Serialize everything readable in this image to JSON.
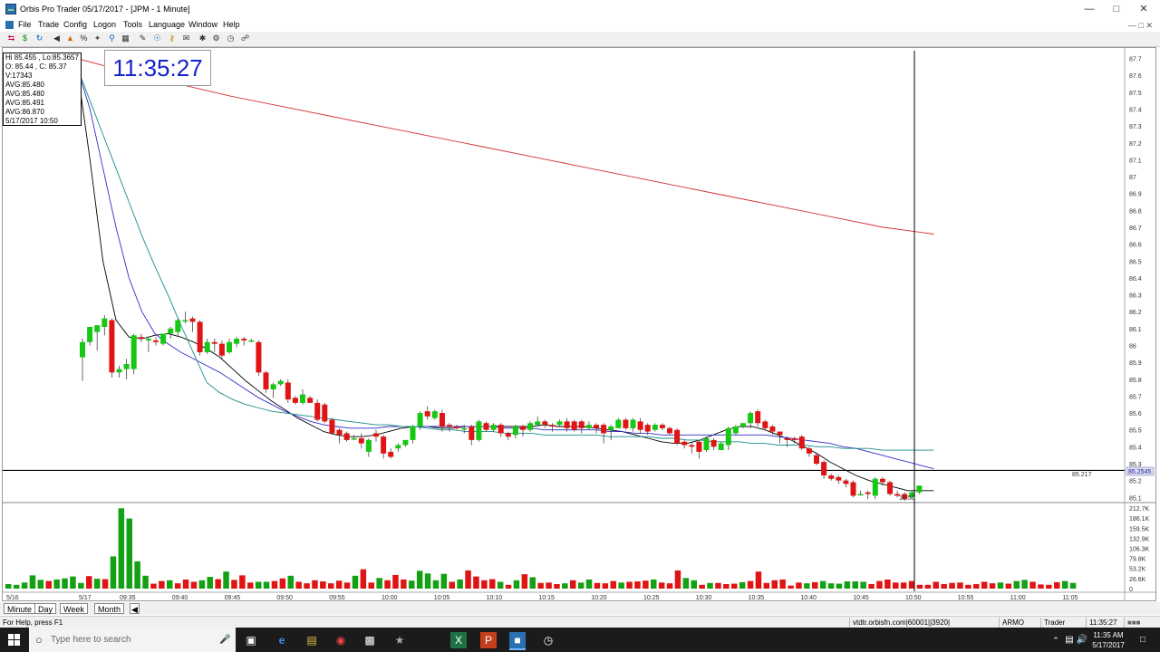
{
  "window": {
    "title": "Orbis Pro Trader 05/17/2017 - [JPM - 1 Minute]",
    "minimize_icon": "minimize-icon",
    "maximize_icon": "maximize-icon",
    "close_icon": "close-icon"
  },
  "menu": [
    "File",
    "Trade",
    "Config",
    "Logon",
    "Tools",
    "Language",
    "Window",
    "Help"
  ],
  "toolbar_icons": [
    "shuffle-icon",
    "dollar-icon",
    "refresh-icon",
    "back-icon",
    "chart-icon",
    "percent-icon",
    "tools-icon",
    "zoom-icon",
    "grid-icon",
    "draw-icon",
    "world-icon",
    "key-icon",
    "mail-icon",
    "settings-icon",
    "gear-icon",
    "clock-icon",
    "lock-icon"
  ],
  "info_box": {
    "line1": "Hi 85.455 , Lo:85.3657",
    "line2": "O: 85.44 , C: 85.37",
    "line3": "V:17343",
    "line4": "AVG:85.480",
    "line5": "AVG:85.480",
    "line6": "AVG:85.491",
    "line7": "AVG:86.870",
    "line8": "5/17/2017 10:50"
  },
  "clock": "11:35:27",
  "chart_data": {
    "type": "candlestick",
    "price_axis_ticks": [
      "87.7",
      "87.6",
      "87.5",
      "87.4",
      "87.3",
      "87.2",
      "87.1",
      "87",
      "86.9",
      "86.8",
      "86.7",
      "86.6",
      "86.5",
      "86.4",
      "86.3",
      "86.2",
      "86.1",
      "86",
      "85.9",
      "85.8",
      "85.7",
      "85.6",
      "85.5",
      "85.4",
      "85.3",
      "85.2",
      "85.1"
    ],
    "volume_axis_ticks": [
      "212.7K",
      "186.1K",
      "159.5K",
      "132.9K",
      "106.3K",
      "79.8K",
      "53.2K",
      "26.6K",
      "0"
    ],
    "time_labels": [
      "5/16",
      "5/17",
      "09:35",
      "09:40",
      "09:45",
      "09:50",
      "09:55",
      "10:00",
      "10:05",
      "10:10",
      "10:15",
      "10:20",
      "10:25",
      "10:30",
      "10:35",
      "10:40",
      "10:45",
      "10:50",
      "10:55",
      "11:00",
      "11:05"
    ],
    "cursor_time_label": "10:50",
    "last_price_label": "85.217",
    "price_marker": "85.2545",
    "ylim": [
      85.08,
      87.73
    ],
    "candles_ohlc": [
      [
        85.93,
        86.02,
        85.79,
        86.04
      ],
      [
        86.02,
        86.11,
        86.0,
        86.09
      ],
      [
        86.08,
        86.12,
        85.97,
        86.11
      ],
      [
        86.11,
        86.16,
        86.06,
        86.18
      ],
      [
        86.15,
        85.84,
        85.81,
        86.16
      ],
      [
        85.84,
        85.86,
        85.81,
        85.88
      ],
      [
        85.86,
        85.89,
        85.8,
        85.92
      ],
      [
        85.86,
        86.06,
        85.83,
        86.07
      ],
      [
        86.05,
        86.04,
        86.02,
        86.07
      ],
      [
        86.03,
        86.04,
        85.96,
        86.05
      ],
      [
        86.03,
        86.02,
        86.0,
        86.05
      ],
      [
        86.01,
        86.07,
        86.0,
        86.07
      ],
      [
        86.07,
        86.1,
        86.04,
        86.11
      ],
      [
        86.08,
        86.15,
        86.05,
        86.16
      ],
      [
        86.15,
        86.15,
        86.13,
        86.2
      ],
      [
        86.16,
        86.14,
        86.08,
        86.17
      ],
      [
        86.14,
        85.96,
        85.94,
        86.15
      ],
      [
        85.96,
        86.02,
        85.95,
        86.04
      ],
      [
        86.02,
        86.01,
        85.96,
        86.04
      ],
      [
        86.01,
        85.94,
        85.92,
        86.03
      ],
      [
        85.96,
        86.02,
        85.95,
        86.04
      ],
      [
        86.01,
        86.04,
        85.99,
        86.05
      ],
      [
        86.04,
        86.03,
        86.0,
        86.05
      ],
      [
        86.03,
        86.03,
        86.02,
        86.04
      ],
      [
        86.02,
        85.84,
        85.82,
        86.03
      ],
      [
        85.84,
        85.74,
        85.72,
        85.85
      ],
      [
        85.74,
        85.77,
        85.69,
        85.78
      ],
      [
        85.77,
        85.79,
        85.76,
        85.8
      ],
      [
        85.78,
        85.68,
        85.66,
        85.8
      ],
      [
        85.69,
        85.66,
        85.65,
        85.7
      ],
      [
        85.66,
        85.71,
        85.65,
        85.74
      ],
      [
        85.69,
        85.66,
        85.66,
        85.7
      ],
      [
        85.66,
        85.56,
        85.55,
        85.68
      ],
      [
        85.65,
        85.55,
        85.54,
        85.66
      ],
      [
        85.56,
        85.48,
        85.47,
        85.57
      ],
      [
        85.5,
        85.47,
        85.42,
        85.51
      ],
      [
        85.48,
        85.44,
        85.43,
        85.49
      ],
      [
        85.45,
        85.45,
        85.44,
        85.47
      ],
      [
        85.45,
        85.42,
        85.39,
        85.48
      ],
      [
        85.37,
        85.44,
        85.34,
        85.45
      ],
      [
        85.48,
        85.46,
        85.43,
        85.5
      ],
      [
        85.46,
        85.36,
        85.33,
        85.47
      ],
      [
        85.37,
        85.34,
        85.33,
        85.39
      ],
      [
        85.39,
        85.41,
        85.37,
        85.42
      ],
      [
        85.41,
        85.44,
        85.4,
        85.44
      ],
      [
        85.44,
        85.52,
        85.42,
        85.53
      ],
      [
        85.52,
        85.6,
        85.5,
        85.61
      ],
      [
        85.61,
        85.58,
        85.56,
        85.64
      ],
      [
        85.57,
        85.61,
        85.56,
        85.62
      ],
      [
        85.6,
        85.52,
        85.49,
        85.62
      ],
      [
        85.53,
        85.52,
        85.49,
        85.54
      ],
      [
        85.52,
        85.51,
        85.5,
        85.53
      ],
      [
        85.51,
        85.51,
        85.48,
        85.53
      ],
      [
        85.52,
        85.44,
        85.41,
        85.53
      ],
      [
        85.44,
        85.55,
        85.43,
        85.56
      ],
      [
        85.54,
        85.5,
        85.49,
        85.55
      ],
      [
        85.5,
        85.53,
        85.49,
        85.54
      ],
      [
        85.53,
        85.48,
        85.46,
        85.54
      ],
      [
        85.48,
        85.46,
        85.44,
        85.49
      ],
      [
        85.47,
        85.52,
        85.45,
        85.53
      ],
      [
        85.52,
        85.5,
        85.46,
        85.53
      ],
      [
        85.5,
        85.54,
        85.49,
        85.55
      ],
      [
        85.53,
        85.55,
        85.52,
        85.58
      ],
      [
        85.55,
        85.53,
        85.51,
        85.56
      ],
      [
        85.53,
        85.52,
        85.49,
        85.54
      ],
      [
        85.53,
        85.55,
        85.52,
        85.56
      ],
      [
        85.55,
        85.51,
        85.49,
        85.57
      ],
      [
        85.55,
        85.5,
        85.49,
        85.56
      ],
      [
        85.55,
        85.51,
        85.48,
        85.56
      ],
      [
        85.51,
        85.53,
        85.5,
        85.55
      ],
      [
        85.53,
        85.51,
        85.48,
        85.54
      ],
      [
        85.53,
        85.48,
        85.42,
        85.54
      ],
      [
        85.5,
        85.52,
        85.44,
        85.53
      ],
      [
        85.51,
        85.56,
        85.51,
        85.57
      ],
      [
        85.56,
        85.51,
        85.5,
        85.57
      ],
      [
        85.51,
        85.56,
        85.49,
        85.57
      ],
      [
        85.55,
        85.5,
        85.48,
        85.57
      ],
      [
        85.53,
        85.49,
        85.47,
        85.54
      ],
      [
        85.5,
        85.53,
        85.49,
        85.54
      ],
      [
        85.53,
        85.51,
        85.5,
        85.54
      ],
      [
        85.51,
        85.48,
        85.47,
        85.52
      ],
      [
        85.5,
        85.42,
        85.41,
        85.51
      ],
      [
        85.43,
        85.41,
        85.39,
        85.44
      ],
      [
        85.41,
        85.4,
        85.36,
        85.43
      ],
      [
        85.43,
        85.37,
        85.33,
        85.44
      ],
      [
        85.38,
        85.45,
        85.37,
        85.46
      ],
      [
        85.44,
        85.4,
        85.38,
        85.45
      ],
      [
        85.38,
        85.42,
        85.38,
        85.43
      ],
      [
        85.41,
        85.51,
        85.38,
        85.52
      ],
      [
        85.48,
        85.52,
        85.47,
        85.53
      ],
      [
        85.52,
        85.54,
        85.51,
        85.54
      ],
      [
        85.54,
        85.6,
        85.51,
        85.61
      ],
      [
        85.61,
        85.54,
        85.52,
        85.62
      ],
      [
        85.55,
        85.51,
        85.5,
        85.56
      ],
      [
        85.52,
        85.49,
        85.47,
        85.53
      ],
      [
        85.49,
        85.47,
        85.42,
        85.49
      ],
      [
        85.45,
        85.44,
        85.4,
        85.46
      ],
      [
        85.45,
        85.44,
        85.42,
        85.46
      ],
      [
        85.46,
        85.39,
        85.38,
        85.47
      ],
      [
        85.39,
        85.36,
        85.34,
        85.4
      ],
      [
        85.35,
        85.3,
        85.29,
        85.36
      ],
      [
        85.31,
        85.23,
        85.21,
        85.32
      ],
      [
        85.23,
        85.21,
        85.2,
        85.24
      ],
      [
        85.22,
        85.2,
        85.18,
        85.23
      ],
      [
        85.2,
        85.18,
        85.16,
        85.21
      ],
      [
        85.19,
        85.11,
        85.1,
        85.2
      ],
      [
        85.12,
        85.12,
        85.11,
        85.14
      ],
      [
        85.13,
        85.12,
        85.09,
        85.14
      ],
      [
        85.11,
        85.21,
        85.09,
        85.22
      ],
      [
        85.21,
        85.19,
        85.17,
        85.22
      ],
      [
        85.19,
        85.12,
        85.11,
        85.2
      ],
      [
        85.12,
        85.11,
        85.1,
        85.14
      ],
      [
        85.12,
        85.09,
        85.08,
        85.13
      ],
      [
        85.1,
        85.13,
        85.09,
        85.14
      ],
      [
        85.13,
        85.17,
        85.12,
        85.17
      ]
    ],
    "volume_k": [
      12,
      10,
      16,
      35,
      23,
      20,
      24,
      27,
      32,
      15,
      33,
      26,
      25,
      85,
      212,
      185,
      72,
      34,
      13,
      20,
      22,
      14,
      24,
      18,
      22,
      31,
      25,
      45,
      23,
      35,
      16,
      18,
      18,
      20,
      27,
      34,
      18,
      14,
      22,
      19,
      14,
      21,
      16,
      34,
      51,
      16,
      28,
      22,
      36,
      24,
      21,
      47,
      40,
      22,
      39,
      18,
      24,
      48,
      32,
      22,
      25,
      18,
      10,
      22,
      38,
      30,
      15,
      16,
      12,
      14,
      22,
      16,
      24,
      15,
      14,
      20,
      16,
      18,
      19,
      21,
      24,
      16,
      14,
      48,
      28,
      22,
      10,
      15,
      15,
      12,
      13,
      17,
      20,
      45,
      15,
      22,
      24,
      8,
      16,
      14,
      17,
      20,
      14,
      13,
      19,
      19,
      18,
      12,
      20,
      24,
      16,
      16,
      20,
      10,
      10,
      18,
      12,
      15,
      16,
      10,
      12,
      18,
      14,
      16,
      13,
      20,
      23,
      18,
      11,
      10,
      17,
      20,
      15
    ],
    "series": [
      {
        "name": "AVG 85.480",
        "color": "#000000",
        "values": [
          87.65,
          87.1,
          86.5,
          86.15,
          86.05,
          86.04,
          86.06,
          86.07,
          86.05,
          86.02,
          85.98,
          85.93,
          85.86,
          85.79,
          85.73,
          85.67,
          85.62,
          85.57,
          85.53,
          85.49,
          85.47,
          85.46,
          85.46,
          85.47,
          85.49,
          85.51,
          85.52,
          85.52,
          85.51,
          85.51,
          85.52,
          85.52,
          85.52,
          85.52,
          85.52,
          85.52,
          85.53,
          85.52,
          85.52,
          85.52,
          85.51,
          85.5,
          85.49,
          85.47,
          85.45,
          85.43,
          85.42,
          85.42,
          85.44,
          85.47,
          85.5,
          85.52,
          85.52,
          85.5,
          85.47,
          85.44,
          85.4,
          85.36,
          85.31,
          85.27,
          85.23,
          85.2,
          85.18,
          85.16,
          85.14,
          85.14,
          85.14
        ]
      },
      {
        "name": "AVG 85.480",
        "color": "#2f2fc8",
        "values": [
          87.65,
          87.4,
          87.05,
          86.7,
          86.4,
          86.2,
          86.07,
          86.01,
          85.96,
          85.92,
          85.88,
          85.84,
          85.79,
          85.74,
          85.69,
          85.65,
          85.61,
          85.58,
          85.55,
          85.53,
          85.52,
          85.51,
          85.51,
          85.51,
          85.52,
          85.52,
          85.52,
          85.52,
          85.52,
          85.52,
          85.52,
          85.52,
          85.52,
          85.51,
          85.51,
          85.51,
          85.5,
          85.5,
          85.5,
          85.5,
          85.5,
          85.49,
          85.49,
          85.48,
          85.48,
          85.47,
          85.47,
          85.47,
          85.47,
          85.47,
          85.47,
          85.47,
          85.47,
          85.47,
          85.46,
          85.45,
          85.44,
          85.43,
          85.42,
          85.4,
          85.39,
          85.37,
          85.35,
          85.33,
          85.31,
          85.29,
          85.27
        ]
      },
      {
        "name": "AVG 85.491",
        "color": "#1a8c8c",
        "values": [
          87.65,
          87.45,
          87.25,
          87.05,
          86.85,
          86.65,
          86.47,
          86.3,
          86.12,
          85.95,
          85.78,
          85.72,
          85.68,
          85.65,
          85.63,
          85.61,
          85.6,
          85.59,
          85.58,
          85.57,
          85.56,
          85.55,
          85.54,
          85.53,
          85.53,
          85.52,
          85.52,
          85.51,
          85.5,
          85.5,
          85.49,
          85.49,
          85.49,
          85.48,
          85.48,
          85.48,
          85.47,
          85.47,
          85.47,
          85.47,
          85.47,
          85.46,
          85.46,
          85.46,
          85.46,
          85.45,
          85.45,
          85.44,
          85.44,
          85.43,
          85.43,
          85.43,
          85.42,
          85.42,
          85.41,
          85.41,
          85.41,
          85.4,
          85.4,
          85.39,
          85.39,
          85.39,
          85.38,
          85.38,
          85.38,
          85.38,
          85.38
        ]
      },
      {
        "name": "AVG 86.870",
        "color": "#d83030",
        "values": [
          87.7,
          87.62,
          87.55,
          87.48,
          87.42,
          87.36,
          87.3,
          87.24,
          87.18,
          87.12,
          87.06,
          87.0,
          86.94,
          86.88,
          86.82,
          86.76,
          86.7,
          86.66
        ]
      }
    ],
    "horizontal_line_price": 85.26
  },
  "tabs": [
    "Minute",
    "Day",
    "Week",
    "Month"
  ],
  "status": {
    "help": "For Help, press F1",
    "server": "vtdtr.orbisfn.com|60001||3920|",
    "account": "ARMO",
    "role": "Trader",
    "time": "11:35:27"
  },
  "taskbar": {
    "search_placeholder": "Type here to search",
    "clock_time": "11:35 AM",
    "clock_date": "5/17/2017"
  }
}
